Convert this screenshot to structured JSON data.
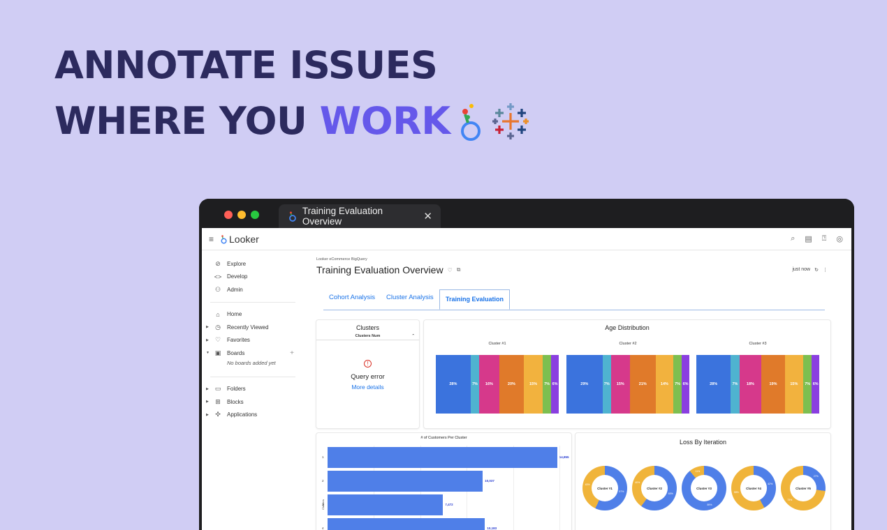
{
  "headline": {
    "line1": "ANNOTATE ISSUES",
    "line2_plain": "WHERE YOU ",
    "line2_accent": "WORK"
  },
  "browser": {
    "tab_title": "Training Evaluation Overview",
    "tab_close": "✕"
  },
  "app": {
    "logo": "Looker"
  },
  "sidebar": {
    "items_top": [
      {
        "label": "Explore",
        "icon": "compass-icon"
      },
      {
        "label": "Develop",
        "icon": "code-icon"
      },
      {
        "label": "Admin",
        "icon": "admin-icon"
      }
    ],
    "items_mid": [
      {
        "label": "Home",
        "icon": "home-icon"
      },
      {
        "label": "Recently Viewed",
        "icon": "clock-icon"
      },
      {
        "label": "Favorites",
        "icon": "heart-icon"
      },
      {
        "label": "Boards",
        "icon": "board-icon"
      }
    ],
    "boards_note": "No boards added yet",
    "items_bottom": [
      {
        "label": "Folders",
        "icon": "folder-icon"
      },
      {
        "label": "Blocks",
        "icon": "blocks-icon"
      },
      {
        "label": "Applications",
        "icon": "puzzle-icon"
      }
    ]
  },
  "dashboard": {
    "breadcrumb": "Looker eCommerce BigQuery",
    "title": "Training Evaluation Overview",
    "updated": "just now",
    "tabs": [
      "Cohort Analysis",
      "Cluster Analysis",
      "Training Evaluation"
    ],
    "active_tab": "Training Evaluation"
  },
  "clusters_card": {
    "title": "Clusters",
    "column": "Clusters Num",
    "error_title": "Query error",
    "error_link": "More details"
  },
  "age_card": {
    "title": "Age Distribution",
    "colors": [
      "#3b73dd",
      "#4fb3d0",
      "#d6398b",
      "#e07a2a",
      "#f2b23e",
      "#7dbf50",
      "#8a3fe0"
    ],
    "clusters": [
      {
        "name": "Cluster #1",
        "values": [
          28,
          7,
          16,
          20,
          15,
          7,
          6
        ],
        "labels": [
          "28%",
          "7%",
          "16%",
          "20%",
          "15%",
          "7%",
          "6%"
        ]
      },
      {
        "name": "Cluster #2",
        "values": [
          29,
          7,
          15,
          21,
          14,
          7,
          6
        ],
        "labels": [
          "29%",
          "7%",
          "15%",
          "21%",
          "14%",
          "7%",
          "6%"
        ]
      },
      {
        "name": "Cluster #3",
        "values": [
          28,
          7,
          18,
          19,
          15,
          7,
          6
        ],
        "labels": [
          "28%",
          "7%",
          "18%",
          "19%",
          "15%",
          "7%",
          "6%"
        ]
      }
    ],
    "axis_ticks": [
      "0%",
      "20%",
      "40%",
      "60%",
      "80%",
      "100%"
    ]
  },
  "customers_card": {
    "title": "# of Customers Per Cluster",
    "y_label": "Clusters",
    "bars": [
      {
        "category": "1",
        "value": 14855,
        "label": "14,855"
      },
      {
        "category": "2",
        "value": 10037,
        "label": "10,037"
      },
      {
        "category": "3",
        "value": 7472,
        "label": "7,472"
      },
      {
        "category": "4",
        "value": 10183,
        "label": "10,183"
      }
    ],
    "max": 15000
  },
  "loss_card": {
    "title": "Loss By Iteration",
    "colors": {
      "blue": "#4f7fe8",
      "gold": "#f0b43a"
    },
    "donuts": [
      {
        "name": "Cluster #1",
        "blue_fraction": 0.57,
        "blue_label": "57%",
        "gold_label": "43%"
      },
      {
        "name": "Cluster #2",
        "blue_fraction": 0.6,
        "blue_label": "60%",
        "gold_label": "40%"
      },
      {
        "name": "Cluster #3",
        "blue_fraction": 0.89,
        "blue_label": "89%",
        "gold_label": "11%"
      },
      {
        "name": "Cluster #4",
        "blue_fraction": 0.42,
        "blue_label": "42%",
        "gold_label": "58%"
      },
      {
        "name": "Cluster #5",
        "blue_fraction": 0.27,
        "blue_label": "27%",
        "gold_label": "73%"
      }
    ]
  }
}
